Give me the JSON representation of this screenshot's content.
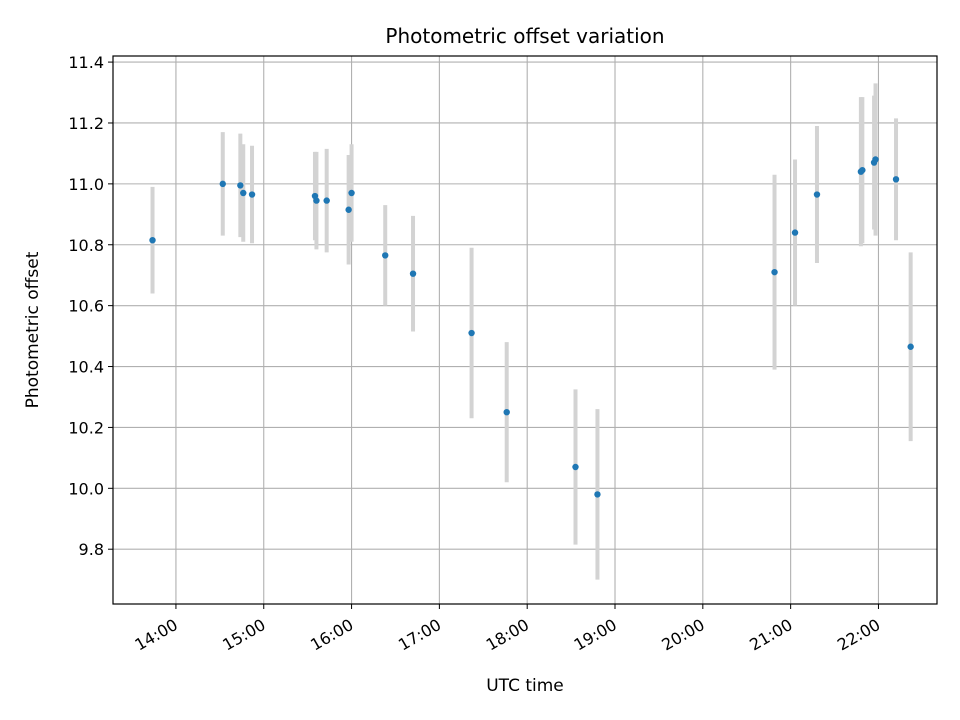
{
  "chart_data": {
    "type": "scatter",
    "title": "Photometric offset variation",
    "xlabel": "UTC time",
    "ylabel": "Photometric offset",
    "x_axis_kind": "time",
    "xlim": [
      "13:17",
      "22:40"
    ],
    "ylim": [
      9.62,
      11.42
    ],
    "grid": true,
    "x_ticks": [
      "14:00",
      "15:00",
      "16:00",
      "17:00",
      "18:00",
      "19:00",
      "20:00",
      "21:00",
      "22:00"
    ],
    "y_ticks": [
      "9.8",
      "10.0",
      "10.2",
      "10.4",
      "10.6",
      "10.8",
      "11.0",
      "11.2",
      "11.4"
    ],
    "point_color": "#1f77b4",
    "errorbar_color": "#d3d3d3",
    "points": [
      {
        "x": "13:44",
        "y": 10.815,
        "err": 0.175
      },
      {
        "x": "14:32",
        "y": 11.0,
        "err": 0.17
      },
      {
        "x": "14:44",
        "y": 10.995,
        "err": 0.17
      },
      {
        "x": "14:46",
        "y": 10.97,
        "err": 0.16
      },
      {
        "x": "14:52",
        "y": 10.965,
        "err": 0.16
      },
      {
        "x": "15:35",
        "y": 10.96,
        "err": 0.145
      },
      {
        "x": "15:36",
        "y": 10.945,
        "err": 0.16
      },
      {
        "x": "15:43",
        "y": 10.945,
        "err": 0.17
      },
      {
        "x": "15:58",
        "y": 10.915,
        "err": 0.18
      },
      {
        "x": "16:00",
        "y": 10.97,
        "err": 0.16
      },
      {
        "x": "16:23",
        "y": 10.765,
        "err": 0.165
      },
      {
        "x": "16:42",
        "y": 10.705,
        "err": 0.19
      },
      {
        "x": "17:22",
        "y": 10.51,
        "err": 0.28
      },
      {
        "x": "17:46",
        "y": 10.25,
        "err": 0.23
      },
      {
        "x": "18:33",
        "y": 10.07,
        "err": 0.255
      },
      {
        "x": "18:48",
        "y": 9.98,
        "err": 0.28
      },
      {
        "x": "20:49",
        "y": 10.71,
        "err": 0.32
      },
      {
        "x": "21:03",
        "y": 10.84,
        "err": 0.24
      },
      {
        "x": "21:18",
        "y": 10.965,
        "err": 0.225
      },
      {
        "x": "21:48",
        "y": 11.04,
        "err": 0.245
      },
      {
        "x": "21:49",
        "y": 11.045,
        "err": 0.24
      },
      {
        "x": "21:57",
        "y": 11.07,
        "err": 0.22
      },
      {
        "x": "21:58",
        "y": 11.08,
        "err": 0.25
      },
      {
        "x": "22:12",
        "y": 11.015,
        "err": 0.2
      },
      {
        "x": "22:22",
        "y": 10.465,
        "err": 0.31
      }
    ]
  }
}
